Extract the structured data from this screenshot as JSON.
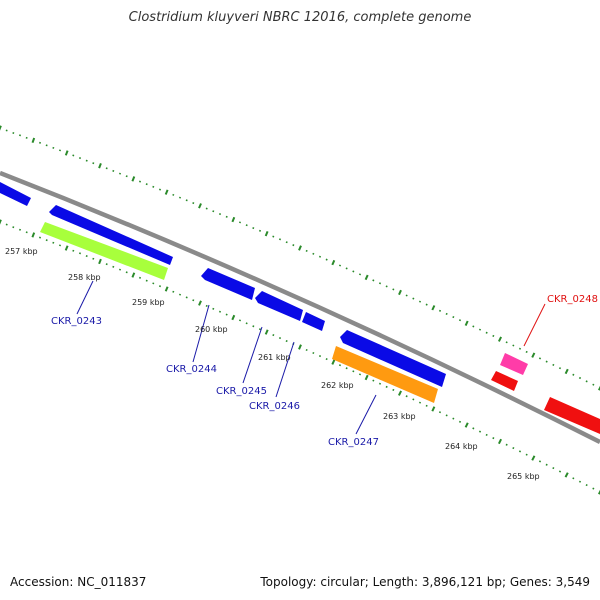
{
  "title": "Clostridium kluyveri NBRC 12016, complete genome",
  "footer": {
    "accession": "Accession: NC_011837",
    "info": "Topology: circular; Length: 3,896,121 bp; Genes: 3,549"
  },
  "colors": {
    "backbone": "#808080",
    "tick": "#2a8a2a",
    "blue": "#0a0ae6",
    "lime": "#a8ff3c",
    "orange": "#ff9a10",
    "magenta": "#ff3ca8",
    "red": "#f01010",
    "label_blue": "#1a1aa8",
    "label_red": "#e01010"
  },
  "scale": {
    "kbp_labels": [
      "257 kbp",
      "258 kbp",
      "259 kbp",
      "260 kbp",
      "261 kbp",
      "262 kbp",
      "263 kbp",
      "264 kbp",
      "265 kbp"
    ]
  },
  "genes": [
    {
      "label": "CKR_0243",
      "color": "blue"
    },
    {
      "label": "CKR_0244",
      "color": "blue"
    },
    {
      "label": "CKR_0245",
      "color": "blue"
    },
    {
      "label": "CKR_0246",
      "color": "blue"
    },
    {
      "label": "CKR_0247",
      "color": "blue"
    },
    {
      "label": "CKR_0248",
      "color": "red"
    }
  ]
}
